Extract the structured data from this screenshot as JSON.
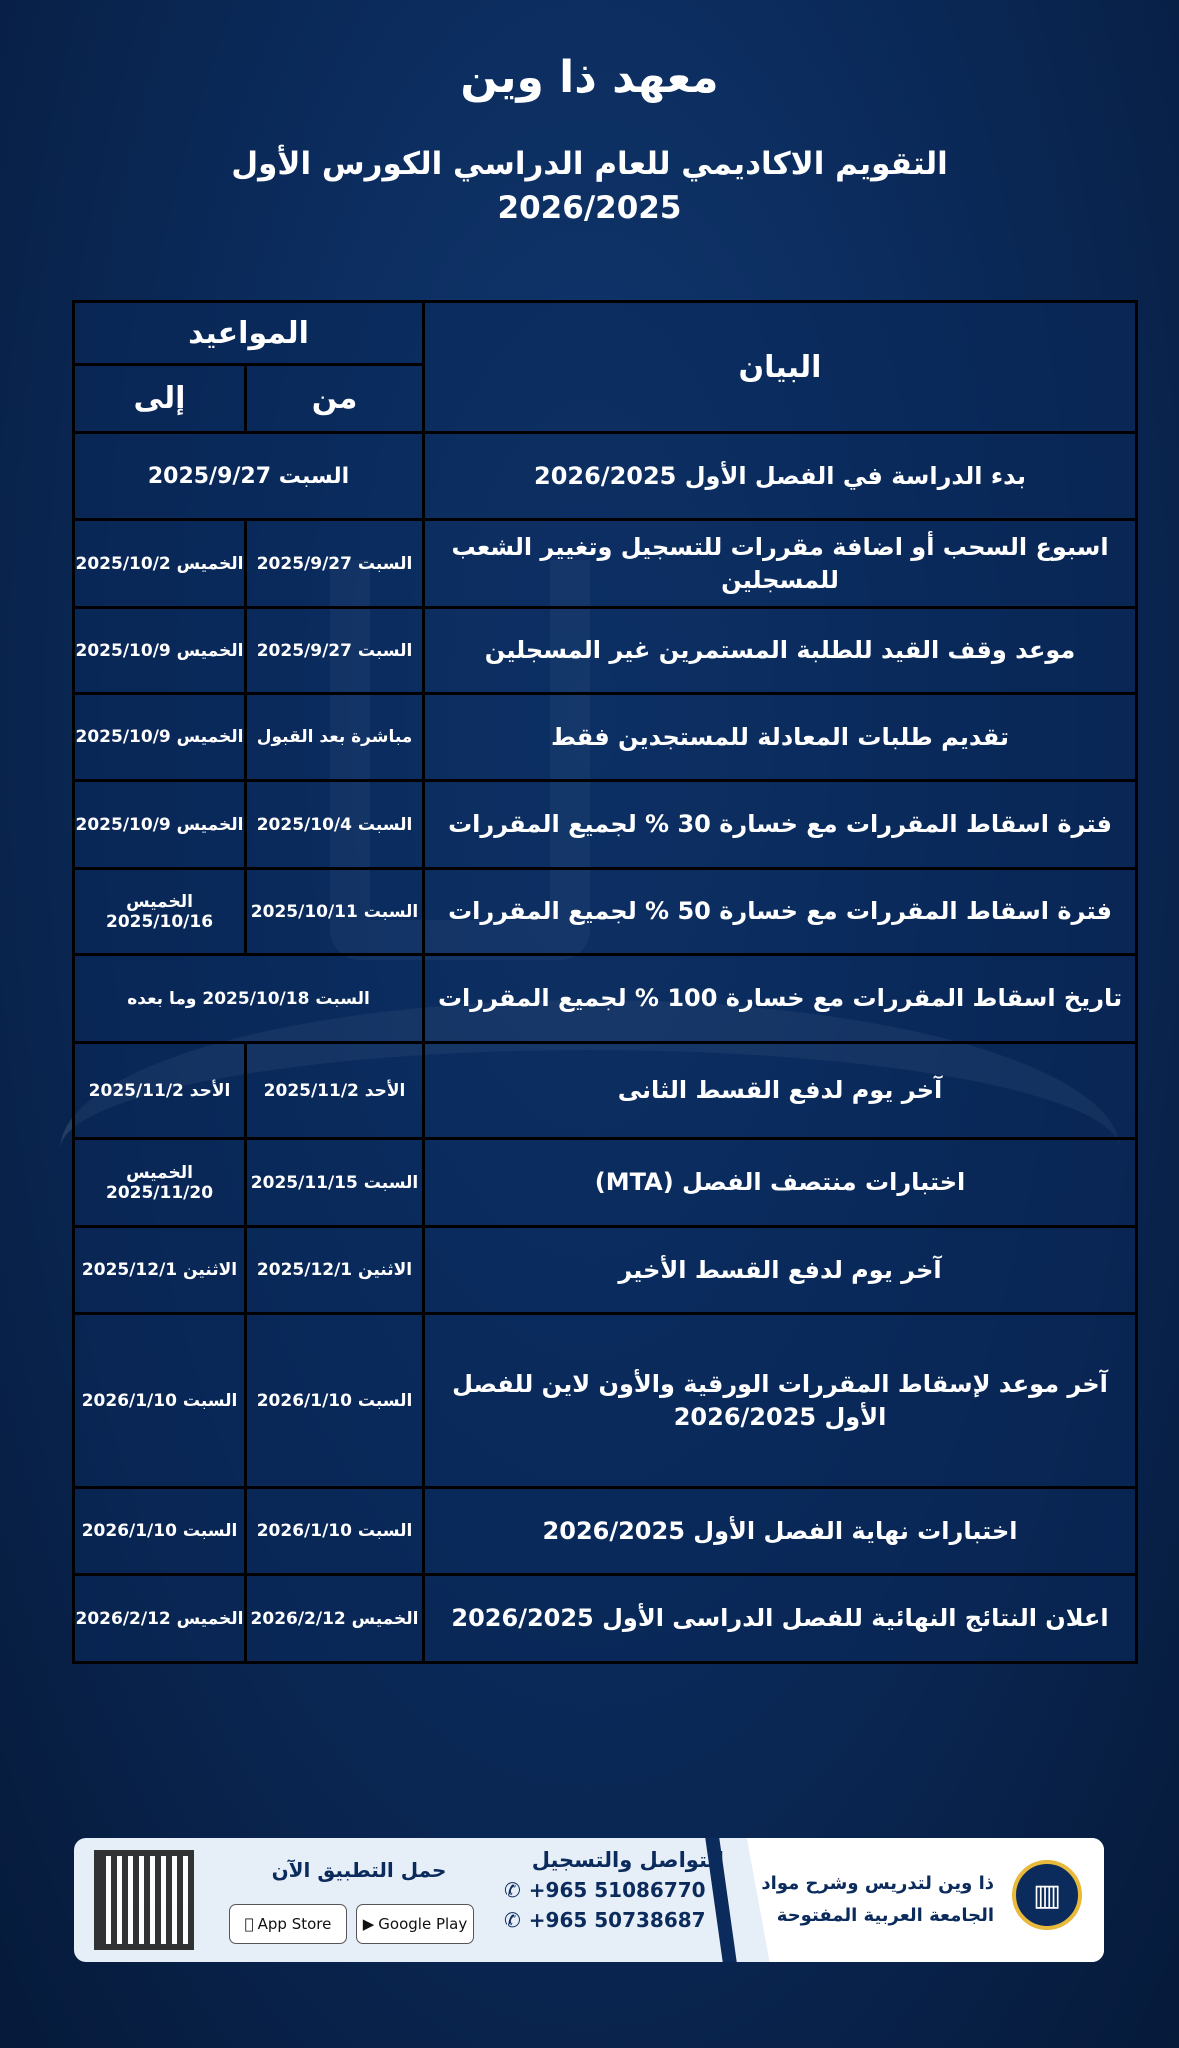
{
  "title": "معهد ذا وين",
  "subtitle_line1": "التقويم الاكاديمي للعام الدراسي الكورس الأول",
  "subtitle_line2": "2026/2025",
  "table": {
    "header": {
      "description": "البيان",
      "dates": "المواعيد",
      "from": "من",
      "to": "إلى"
    },
    "rows": [
      {
        "desc": "بدء الدراسة في الفصل الأول 2026/2025",
        "merged": "السبت 2025/9/27"
      },
      {
        "desc": "اسبوع السحب أو اضافة مقررات للتسجيل وتغيير الشعب للمسجلين",
        "from": "السبت 2025/9/27",
        "to": "الخميس 2025/10/2"
      },
      {
        "desc": "موعد وقف القيد للطلبة المستمرين غير المسجلين",
        "from": "السبت 2025/9/27",
        "to": "الخميس 2025/10/9"
      },
      {
        "desc": "تقديم طلبات المعادلة للمستجدين فقط",
        "from": "مباشرة بعد القبول",
        "to": "الخميس 2025/10/9"
      },
      {
        "desc": "فترة اسقاط المقررات مع خسارة 30 % لجميع المقررات",
        "from": "السبت 2025/10/4",
        "to": "الخميس 2025/10/9"
      },
      {
        "desc": "فترة اسقاط المقررات مع خسارة 50 % لجميع المقررات",
        "from": "السبت 2025/10/11",
        "to": "الخميس 2025/10/16"
      },
      {
        "desc": "تاريخ اسقاط المقررات مع خسارة 100 % لجميع المقررات",
        "merged": "السبت 2025/10/18 وما بعده"
      },
      {
        "desc": "آخر يوم لدفع القسط الثانى",
        "from": "الأحد 2025/11/2",
        "to": "الأحد 2025/11/2"
      },
      {
        "desc": "اختبارات منتصف الفصل (MTA)",
        "from": "السبت 2025/11/15",
        "to": "الخميس 2025/11/20"
      },
      {
        "desc": "آخر يوم لدفع القسط الأخير",
        "from": "الاثنين 2025/12/1",
        "to": "الاثنين 2025/12/1"
      },
      {
        "desc": "آخر موعد لإسقاط المقررات الورقية والأون لاين للفصل الأول 2026/2025",
        "from": "السبت 2026/1/10",
        "to": "السبت 2026/1/10"
      },
      {
        "desc": "اختبارات نهاية الفصل الأول 2026/2025",
        "from": "السبت 2026/1/10",
        "to": "السبت 2026/1/10"
      },
      {
        "desc": "اعلان النتائج النهائية للفصل الدراسى الأول 2026/2025",
        "from": "الخميس 2026/2/12",
        "to": "الخميس 2026/2/12"
      }
    ]
  },
  "footer": {
    "brand_line1": "ذا وين لتدريس وشرح مواد",
    "brand_line2": "الجامعة العربية المفتوحة",
    "contact_title": "للتواصل والتسجيل",
    "phones": [
      "+965 51086770",
      "+965 50738687"
    ],
    "app_title": "حمل التطبيق الآن",
    "app_store": "App Store",
    "google_play": "Google Play"
  },
  "colors": {
    "background": "#0b2b5c",
    "accent": "#e8b93a"
  }
}
